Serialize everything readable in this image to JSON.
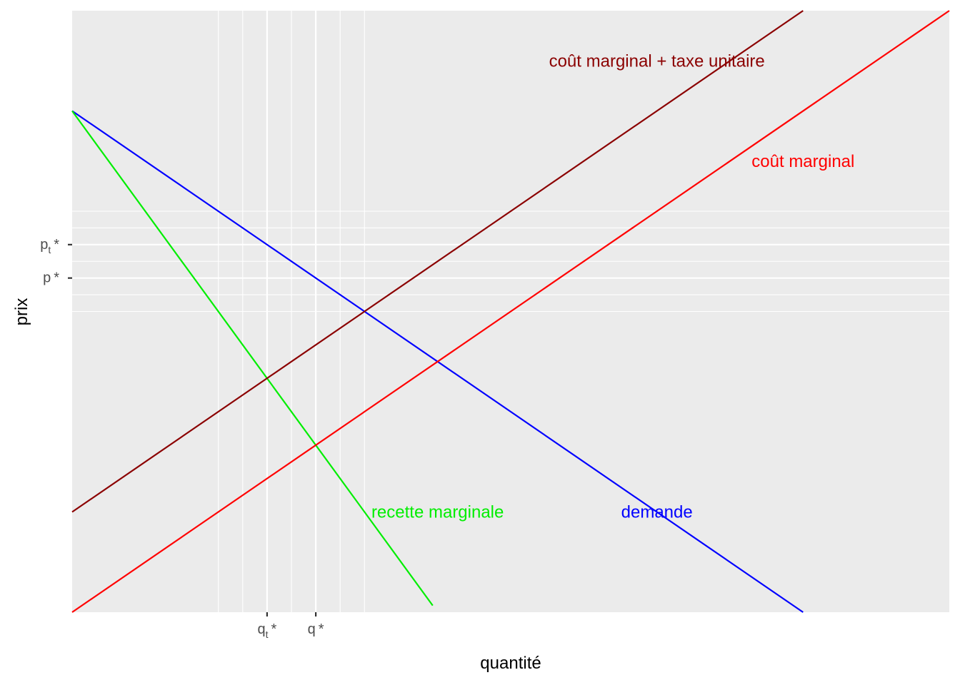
{
  "chart_data": {
    "type": "line",
    "title": "",
    "xlabel": "quantité",
    "ylabel": "prix",
    "xlim": [
      0,
      36
    ],
    "ylim": [
      0,
      36
    ],
    "grid": true,
    "legend": "none (series labelled directly on the plot)",
    "x_ticks": [
      {
        "value": 8,
        "main": "q",
        "sub": "t",
        "star": "*"
      },
      {
        "value": 10,
        "main": "q",
        "sub": "",
        "star": "*"
      }
    ],
    "y_ticks": [
      {
        "value": 22,
        "main": "p",
        "sub": "t",
        "star": "*"
      },
      {
        "value": 20,
        "main": "p",
        "sub": "",
        "star": "*"
      }
    ],
    "series": [
      {
        "name": "demande",
        "color": "#0000ff",
        "x": [
          0,
          30
        ],
        "y": [
          30,
          0
        ]
      },
      {
        "name": "recette marginale",
        "color": "#00ee00",
        "x": [
          0,
          14.8
        ],
        "y": [
          30,
          0.4
        ]
      },
      {
        "name": "coût marginal",
        "color": "#ff0000",
        "x": [
          0,
          36
        ],
        "y": [
          0,
          36
        ]
      },
      {
        "name": "coût marginal + taxe unitaire",
        "color": "#8b0000",
        "x": [
          0,
          30
        ],
        "y": [
          6,
          36
        ]
      }
    ],
    "annotations": [
      {
        "text": "coût marginal + taxe unitaire",
        "x": 24,
        "y": 33,
        "color": "#8b0000"
      },
      {
        "text": "coût marginal",
        "x": 30,
        "y": 27,
        "color": "#ff0000"
      },
      {
        "text": "recette marginale",
        "x": 15,
        "y": 6,
        "color": "#00ee00"
      },
      {
        "text": "demande",
        "x": 24,
        "y": 6,
        "color": "#0000ff"
      }
    ]
  }
}
